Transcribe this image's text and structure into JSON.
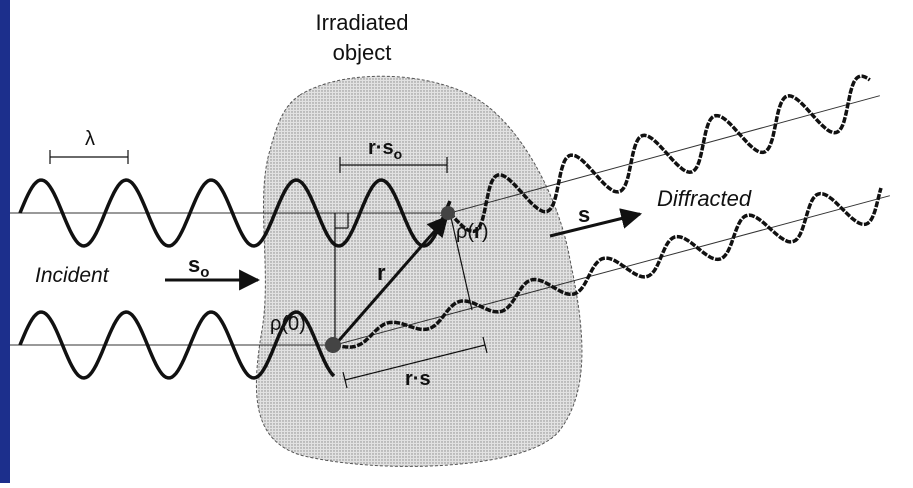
{
  "title": {
    "line1": "Irradiated",
    "line2": "object"
  },
  "labels": {
    "lambda": "λ",
    "r_dot_s0": {
      "main": "r·s",
      "sub": "o"
    },
    "incident": "Incident",
    "s0": {
      "main": "s",
      "sub": "o"
    },
    "rho0": "ρ(0)",
    "rhor": {
      "main": "ρ(",
      "bold": "r",
      "end": ")"
    },
    "r": "r",
    "r_dot_s": "r·s",
    "s": "s",
    "diffracted": "Diffracted"
  }
}
